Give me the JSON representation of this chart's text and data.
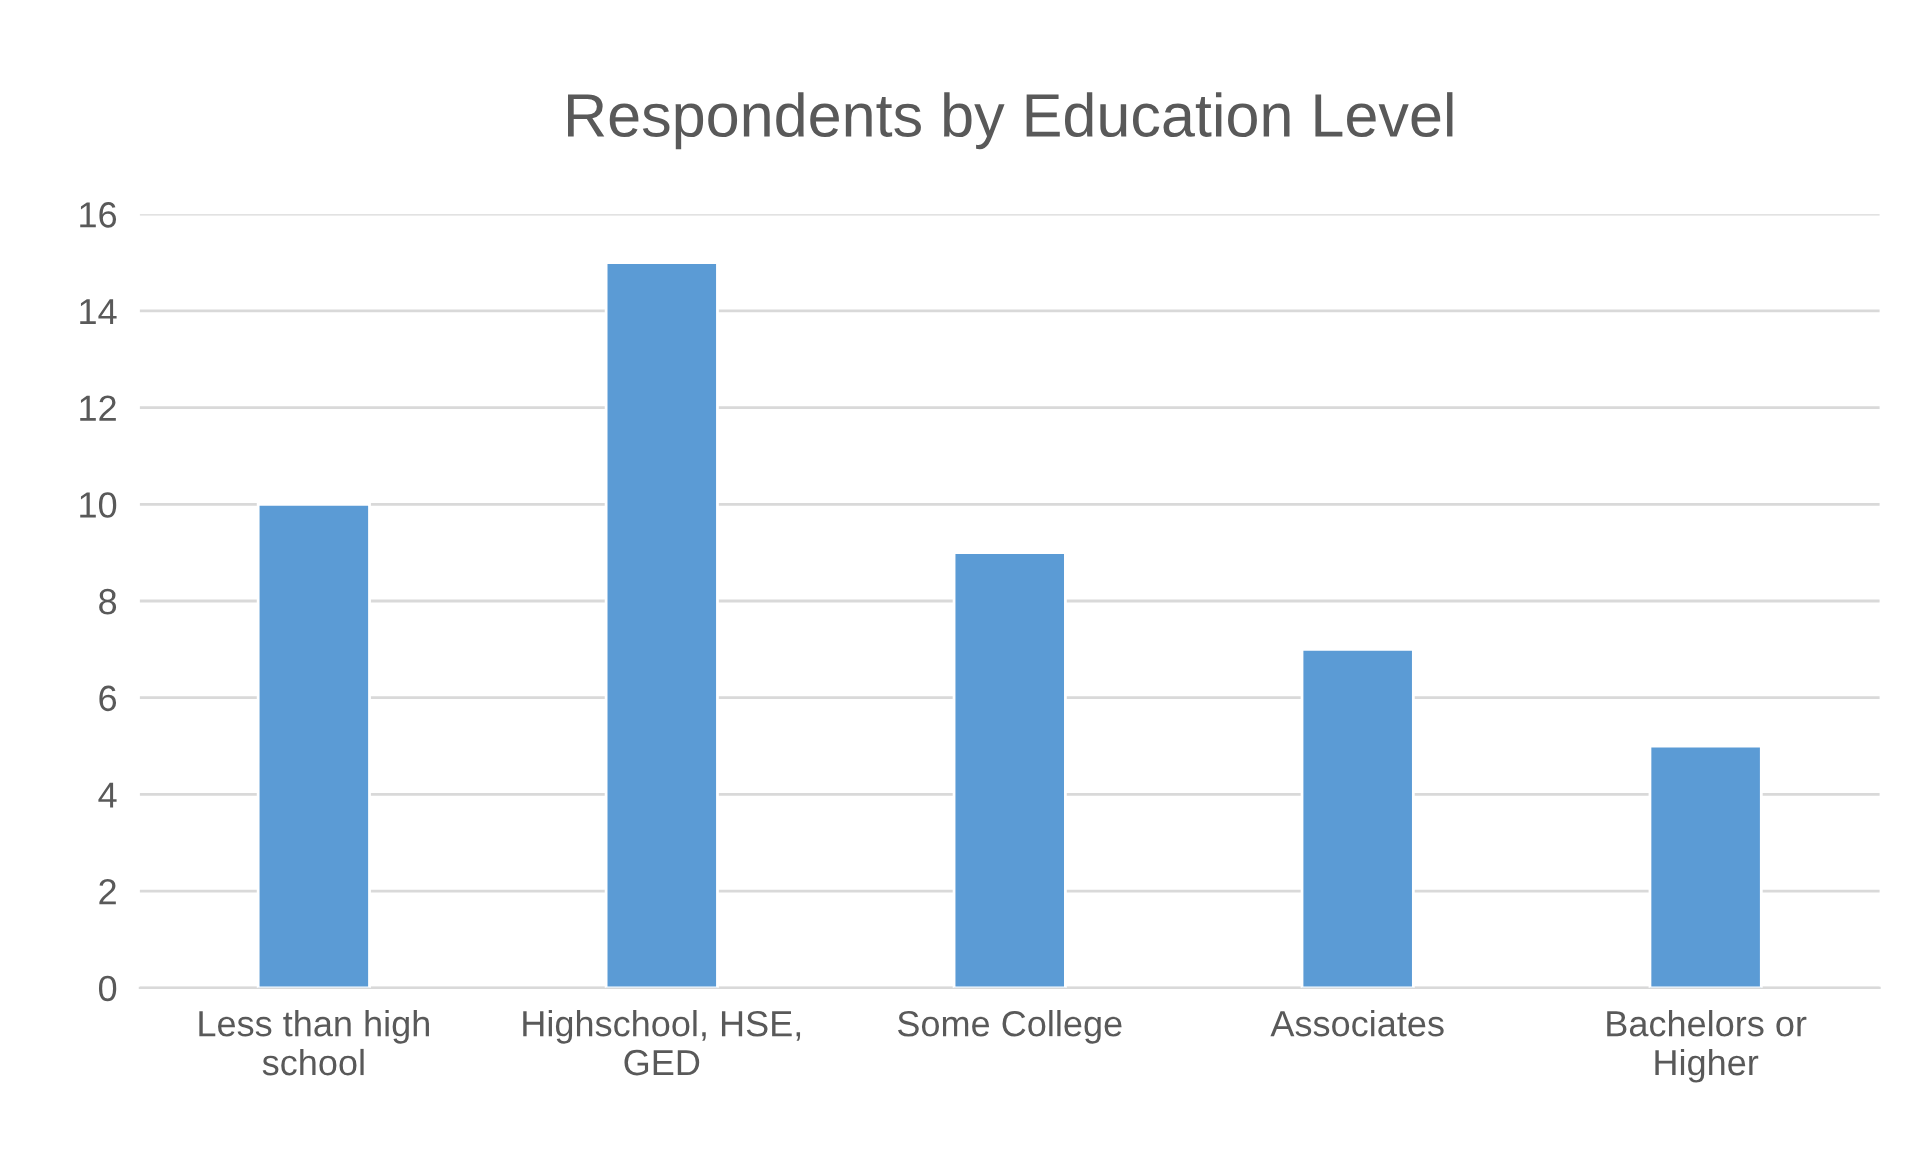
{
  "chart_data": {
    "type": "bar",
    "title": "Respondents by Education Level",
    "categories": [
      "Less than high\nschool",
      "Highschool, HSE,\nGED",
      "Some College",
      "Associates",
      "Bachelors or\nHigher"
    ],
    "values": [
      10,
      15,
      9,
      7,
      5
    ],
    "color": "#5b9bd5",
    "ylim": [
      0,
      16
    ],
    "yticks": [
      0,
      2,
      4,
      6,
      8,
      10,
      12,
      14,
      16
    ],
    "grid": "y",
    "legend": false
  }
}
